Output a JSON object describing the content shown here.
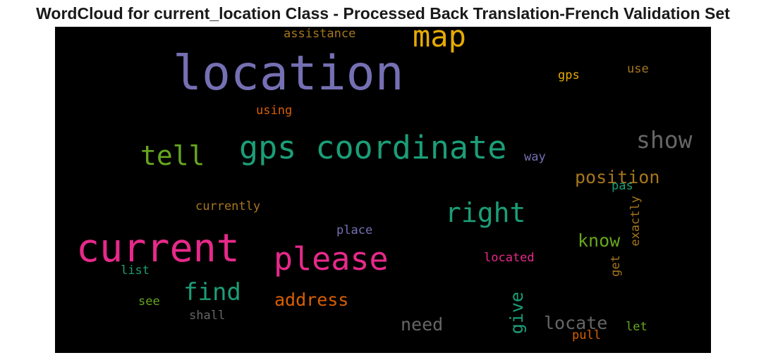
{
  "chart_data": {
    "type": "wordcloud",
    "title": "WordCloud for current_location Class - Processed Back Translation-French Validation Set",
    "background": "#000000",
    "words": [
      {
        "text": "location",
        "color": "#7570b3",
        "orientation": "horizontal"
      },
      {
        "text": "map",
        "color": "#e6ab02",
        "orientation": "horizontal"
      },
      {
        "text": "assistance",
        "color": "#a6761d",
        "orientation": "horizontal"
      },
      {
        "text": "gps",
        "color": "#e6ab02",
        "orientation": "horizontal"
      },
      {
        "text": "use",
        "color": "#a6761d",
        "orientation": "horizontal"
      },
      {
        "text": "using",
        "color": "#d95f02",
        "orientation": "horizontal"
      },
      {
        "text": "gps coordinate",
        "color": "#1b9e77",
        "orientation": "horizontal"
      },
      {
        "text": "tell",
        "color": "#66a61e",
        "orientation": "horizontal"
      },
      {
        "text": "show",
        "color": "#666666",
        "orientation": "horizontal"
      },
      {
        "text": "way",
        "color": "#7570b3",
        "orientation": "horizontal"
      },
      {
        "text": "position",
        "color": "#a6761d",
        "orientation": "horizontal"
      },
      {
        "text": "pas",
        "color": "#1b9e77",
        "orientation": "horizontal"
      },
      {
        "text": "currently",
        "color": "#a6761d",
        "orientation": "horizontal"
      },
      {
        "text": "right",
        "color": "#1b9e77",
        "orientation": "horizontal"
      },
      {
        "text": "exactly",
        "color": "#a6761d",
        "orientation": "vertical"
      },
      {
        "text": "place",
        "color": "#7570b3",
        "orientation": "horizontal"
      },
      {
        "text": "current",
        "color": "#e7298a",
        "orientation": "horizontal"
      },
      {
        "text": "please",
        "color": "#e7298a",
        "orientation": "horizontal"
      },
      {
        "text": "know",
        "color": "#66a61e",
        "orientation": "horizontal"
      },
      {
        "text": "located",
        "color": "#e7298a",
        "orientation": "horizontal"
      },
      {
        "text": "get",
        "color": "#a6761d",
        "orientation": "vertical"
      },
      {
        "text": "list",
        "color": "#1b9e77",
        "orientation": "horizontal"
      },
      {
        "text": "find",
        "color": "#1b9e77",
        "orientation": "horizontal"
      },
      {
        "text": "address",
        "color": "#d95f02",
        "orientation": "horizontal"
      },
      {
        "text": "give",
        "color": "#1b9e77",
        "orientation": "vertical"
      },
      {
        "text": "see",
        "color": "#66a61e",
        "orientation": "horizontal"
      },
      {
        "text": "shall",
        "color": "#666666",
        "orientation": "horizontal"
      },
      {
        "text": "need",
        "color": "#666666",
        "orientation": "horizontal"
      },
      {
        "text": "locate",
        "color": "#666666",
        "orientation": "horizontal"
      },
      {
        "text": "let",
        "color": "#66a61e",
        "orientation": "horizontal"
      },
      {
        "text": "pull",
        "color": "#d95f02",
        "orientation": "horizontal"
      }
    ]
  }
}
